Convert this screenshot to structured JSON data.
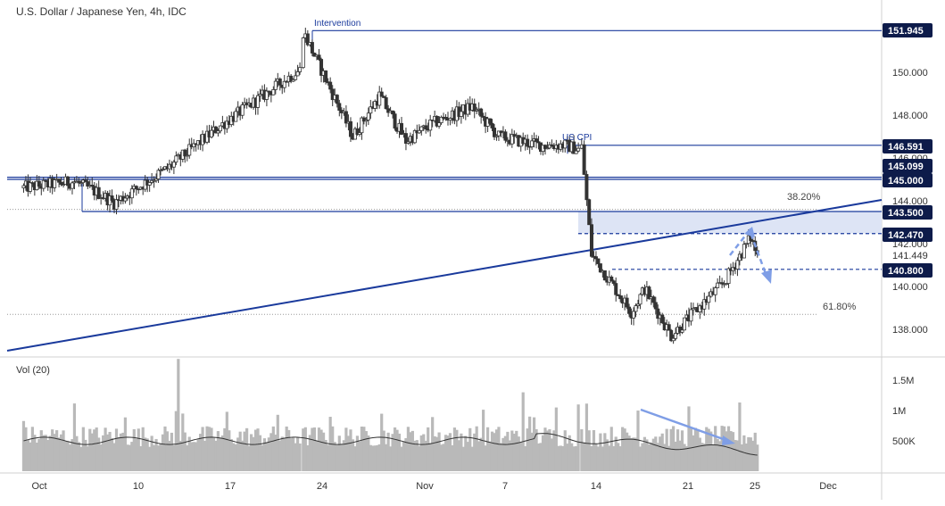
{
  "header": {
    "title": "U.S. Dollar / Japanese Yen, 4h, IDC"
  },
  "volume_panel": {
    "label": "Vol (20)"
  },
  "colors": {
    "candle": "#333333",
    "trendline": "#1a3a9c",
    "level_line": "#1a3a9c",
    "fib_line": "#9a9a9a",
    "zone_fill": "#dde4f5",
    "projection_arrow": "#7f9ee6",
    "price_tag_bg": "#0d1b4a",
    "volume_bar": "#b9b9b9",
    "volume_ma": "#333333"
  },
  "chart_data": [
    {
      "type": "candlestick",
      "title": "U.S. Dollar / Japanese Yen, 4h, IDC",
      "x_axis": {
        "ticks": [
          "Oct",
          "10",
          "17",
          "24",
          "Nov",
          "7",
          "14",
          "21",
          "25",
          "Dec"
        ]
      },
      "y_axis": {
        "ticks": [
          138.0,
          140.0,
          142.0,
          144.0,
          146.0,
          148.0,
          150.0
        ],
        "tick_labels": [
          "138.000",
          "140.000",
          "142.000",
          "144.000",
          "146.000",
          "148.000",
          "150.000"
        ],
        "range": [
          137.0,
          153.0
        ]
      },
      "price_tags": [
        {
          "value": 151.945,
          "label": "151.945"
        },
        {
          "value": 146.591,
          "label": "146.591"
        },
        {
          "value": 145.099,
          "label": "145.099"
        },
        {
          "value": 145.0,
          "label": "145.000"
        },
        {
          "value": 143.5,
          "label": "143.500"
        },
        {
          "value": 142.47,
          "label": "142.470"
        },
        {
          "value": 141.449,
          "label": "141.449"
        },
        {
          "value": 140.8,
          "label": "140.800"
        }
      ],
      "annotations": [
        {
          "text": "Intervention",
          "date": "Oct 21",
          "price": 151.945
        },
        {
          "text": "US CPI",
          "date": "Nov 10",
          "price": 146.591
        },
        {
          "text": "38.20%",
          "price": 143.6
        },
        {
          "text": "61.80%",
          "price": 138.7
        }
      ],
      "price_path": [
        [
          "Sep 29",
          144.6
        ],
        [
          "Oct 3",
          144.9
        ],
        [
          "Oct 5",
          144.3
        ],
        [
          "Oct 6",
          143.9
        ],
        [
          "Oct 10",
          145.5
        ],
        [
          "Oct 14",
          147.5
        ],
        [
          "Oct 17",
          148.8
        ],
        [
          "Oct 19",
          149.7
        ],
        [
          "Oct 20",
          150.1
        ],
        [
          "Oct 21",
          151.9
        ],
        [
          "Oct 21 b",
          147.0
        ],
        [
          "Oct 24",
          148.9
        ],
        [
          "Oct 26",
          146.8
        ],
        [
          "Oct 28",
          147.6
        ],
        [
          "Oct 31",
          148.4
        ],
        [
          "Nov 2",
          147.0
        ],
        [
          "Nov 4",
          146.6
        ],
        [
          "Nov 7",
          146.6
        ],
        [
          "Nov 9",
          146.4
        ],
        [
          "Nov 10",
          146.5
        ],
        [
          "Nov 10 b",
          141.5
        ],
        [
          "Nov 11",
          138.8
        ],
        [
          "Nov 14",
          139.9
        ],
        [
          "Nov 15",
          137.7
        ],
        [
          "Nov 17",
          140.2
        ],
        [
          "Nov 21",
          142.3
        ],
        [
          "Nov 23",
          141.45
        ]
      ],
      "volume_axis": {
        "tick_labels": [
          "1.5M",
          "1M",
          "500K"
        ],
        "ticks": [
          1500000,
          1000000,
          500000
        ]
      },
      "volume_ma_level": 500000,
      "legend": "none",
      "grid": false
    }
  ]
}
